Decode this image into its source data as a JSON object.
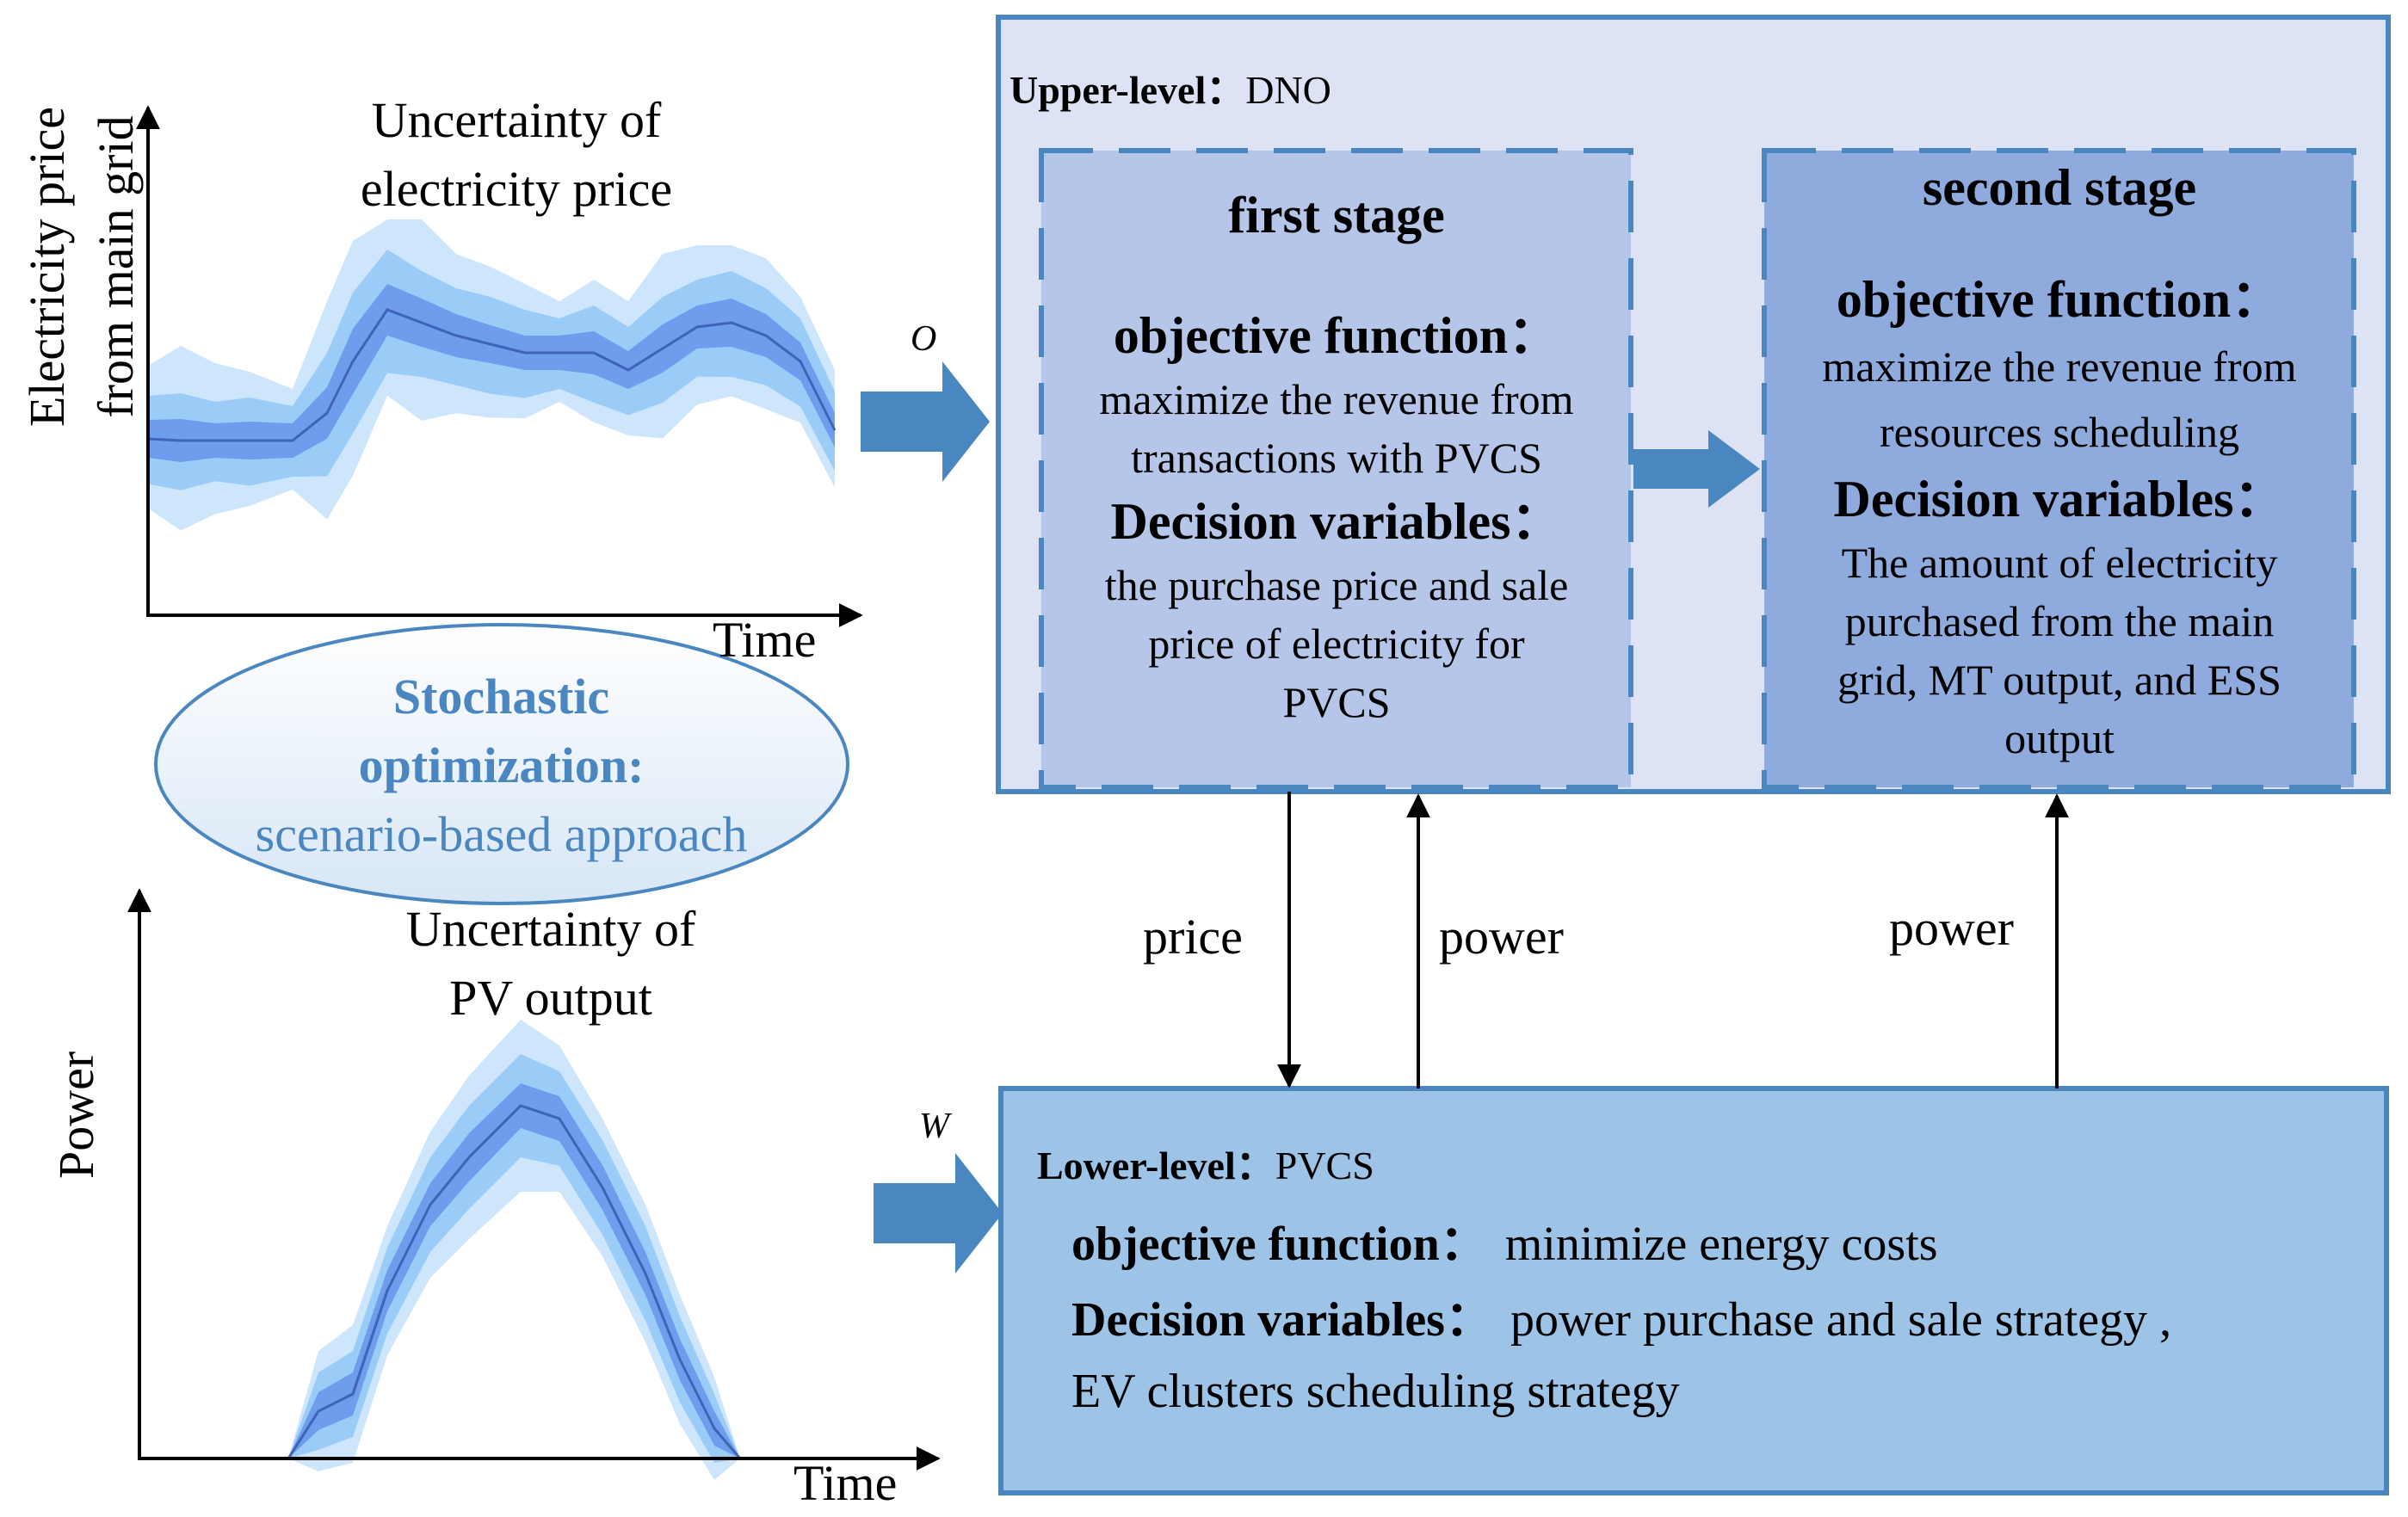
{
  "price_chart": {
    "title_line1": "Uncertainty of",
    "title_line2": "electricity price",
    "ylabel_line1": "Electricity price",
    "ylabel_line2": "from main grid",
    "xlabel": "Time"
  },
  "pv_chart": {
    "title_line1": "Uncertainty of",
    "title_line2": "PV output",
    "ylabel": "Power",
    "xlabel": "Time"
  },
  "stochastic": {
    "line1": "Stochastic",
    "line2": "optimization:",
    "line3": "scenario-based approach"
  },
  "arrow_labels": {
    "omega": "O",
    "w": "W",
    "price": "price",
    "power_left": "power",
    "power_right": "power"
  },
  "upper": {
    "label_bold": "Upper-level：",
    "label_normal": "DNO",
    "first_stage": {
      "title": "first stage",
      "obj_title": "objective function：",
      "obj_line1": "maximize the revenue from",
      "obj_line2": "transactions with PVCS",
      "dec_title": "Decision variables：",
      "dec_line1": "the purchase price and sale",
      "dec_line2": "price of electricity for",
      "dec_line3": "PVCS"
    },
    "second_stage": {
      "title": "second stage",
      "obj_title": "objective function：",
      "obj_line1": "maximize the revenue from",
      "obj_line2": "resources scheduling",
      "dec_title": "Decision variables：",
      "dec_line1": "The amount of electricity",
      "dec_line2": "purchased from the main",
      "dec_line3": "grid, MT output, and ESS",
      "dec_line4": "output"
    }
  },
  "lower": {
    "label_bold": "Lower-level：",
    "label_normal": "PVCS",
    "obj_title": "objective function：",
    "obj_text": "minimize energy costs",
    "dec_title": "Decision variables：",
    "dec_text1": "power purchase and sale strategy ,",
    "dec_text2": "EV clusters scheduling strategy"
  },
  "colors": {
    "upper_bg": "#dde3f4",
    "upper_border": "#4a86c0",
    "first_stage_bg": "#b5c6e8",
    "second_stage_bg": "#8faadc",
    "lower_bg": "#9dc3e6",
    "arrow_blue": "#4a86c0",
    "band_light": "#c6e2fb",
    "band_mid": "#8fc6f5",
    "band_dark": "#5e8ee8",
    "stochastic_text": "#4a86c0"
  }
}
